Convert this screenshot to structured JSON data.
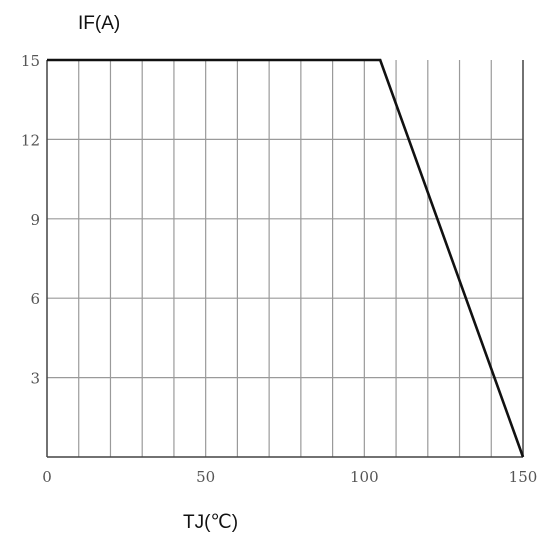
{
  "chart_data": {
    "type": "line",
    "title": "",
    "xlabel": "TJ(℃)",
    "ylabel": "IF(A)",
    "xlim": [
      0,
      150
    ],
    "ylim": [
      0,
      15
    ],
    "x_ticks": [
      "0",
      "50",
      "100",
      "150"
    ],
    "y_ticks": [
      "3",
      "6",
      "9",
      "12",
      "15"
    ],
    "grid": true,
    "series": [
      {
        "x": [
          0,
          105,
          150
        ],
        "y": [
          15,
          15,
          0
        ]
      }
    ],
    "colors": {
      "line": "#111111",
      "grid": "#9a9a9a",
      "axes": "#444444"
    }
  }
}
